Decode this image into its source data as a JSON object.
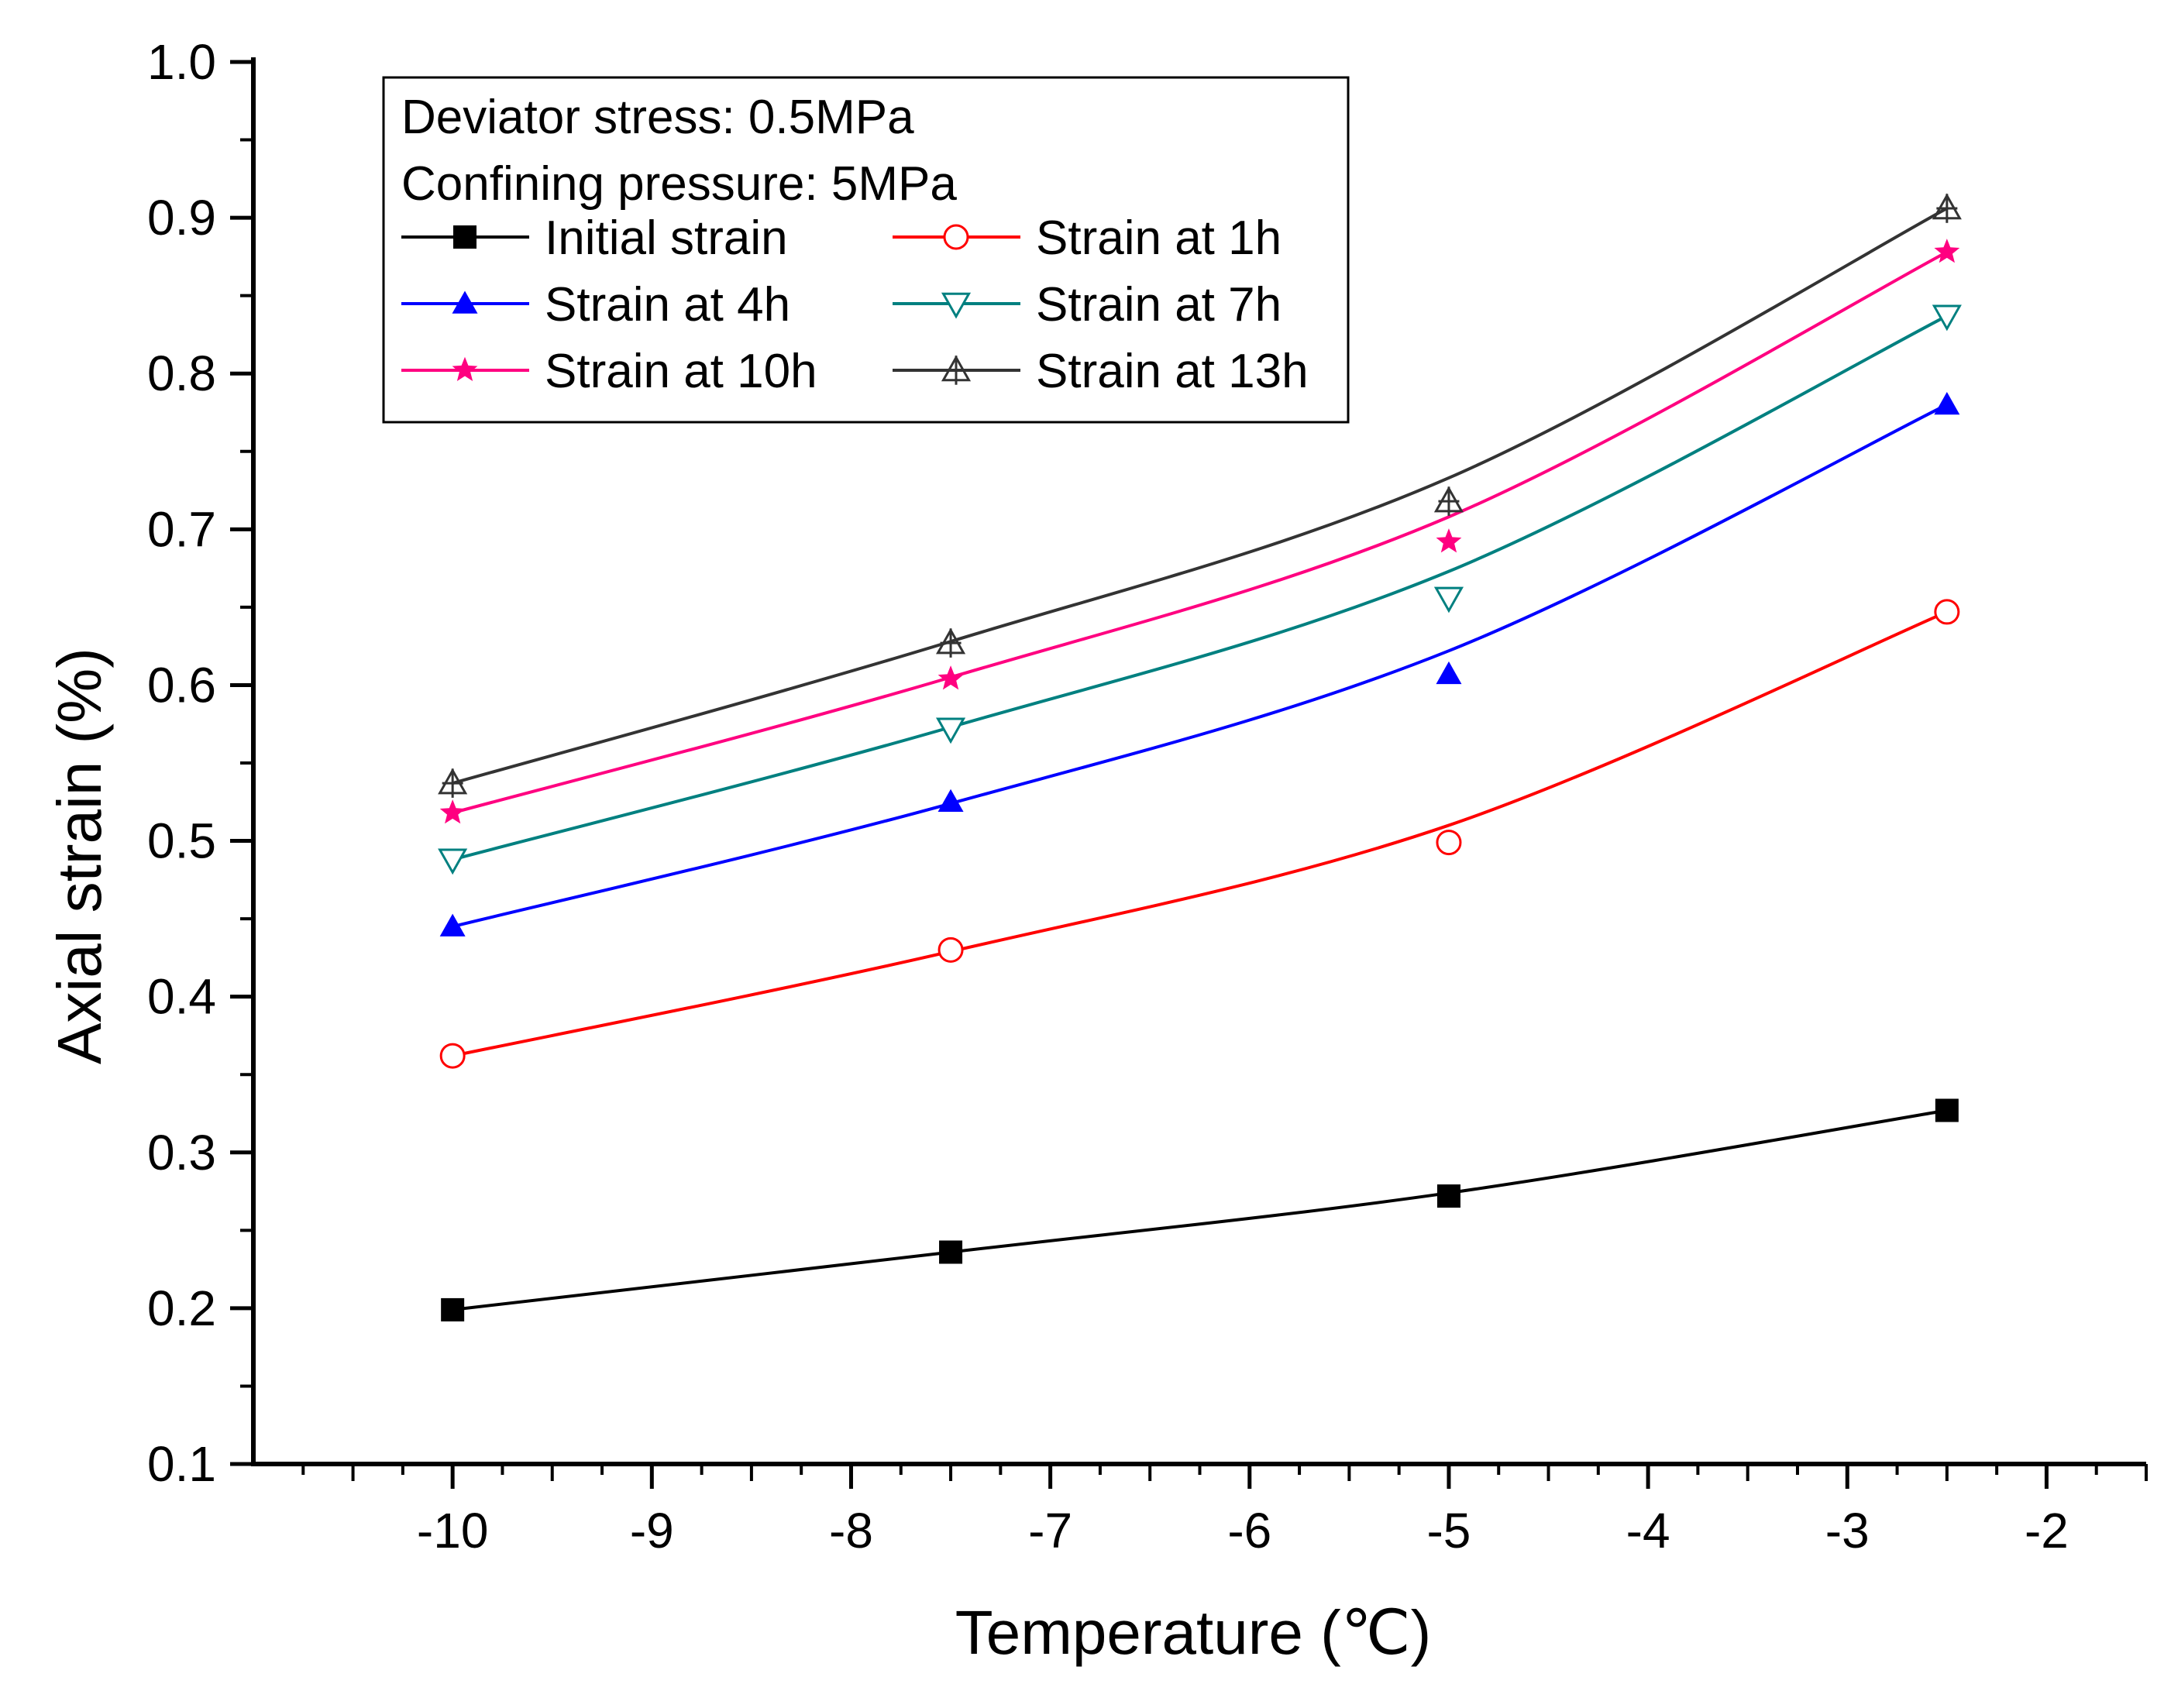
{
  "chart_data": {
    "type": "line",
    "xlabel": "Temperature (℃)",
    "ylabel": "Axial strain (%)",
    "xlim": [
      -11,
      -1.5
    ],
    "ylim": [
      0.1,
      1.0
    ],
    "x_ticks": [
      -10,
      -9,
      -8,
      -7,
      -6,
      -5,
      -4,
      -3,
      -2
    ],
    "x_tick_labels": [
      "-10",
      "-9",
      "-8",
      "-7",
      "-6",
      "-5",
      "-4",
      "-3",
      "-2"
    ],
    "y_ticks": [
      0.1,
      0.2,
      0.3,
      0.4,
      0.5,
      0.6,
      0.7,
      0.8,
      0.9,
      1.0
    ],
    "y_tick_labels": [
      "0.1",
      "0.2",
      "0.3",
      "0.4",
      "0.5",
      "0.6",
      "0.7",
      "0.8",
      "0.9",
      "1.0"
    ],
    "x": [
      -10,
      -7.5,
      -5,
      -2.5
    ],
    "legend_header": [
      "Deviator stress: 0.5MPa",
      "Confining pressure: 5MPa"
    ],
    "legend_position": "top-left",
    "series": [
      {
        "name": "Initial strain",
        "color": "#000000",
        "marker": "square-filled",
        "values": [
          0.199,
          0.236,
          0.272,
          0.327
        ],
        "fit": [
          0.199,
          0.236,
          0.274,
          0.327
        ]
      },
      {
        "name": "Strain at 1h",
        "color": "#ff0000",
        "marker": "circle-open",
        "values": [
          0.362,
          0.43,
          0.499,
          0.647
        ],
        "fit": [
          0.362,
          0.429,
          0.51,
          0.647
        ]
      },
      {
        "name": "Strain at 4h",
        "color": "#0000ff",
        "marker": "triangle-up-filled",
        "values": [
          0.445,
          0.525,
          0.607,
          0.78
        ],
        "fit": [
          0.445,
          0.524,
          0.622,
          0.78
        ]
      },
      {
        "name": "Strain at 7h",
        "color": "#008080",
        "marker": "triangle-down-open",
        "values": [
          0.488,
          0.572,
          0.656,
          0.837
        ],
        "fit": [
          0.488,
          0.573,
          0.673,
          0.837
        ]
      },
      {
        "name": "Strain at 10h",
        "color": "#ff0080",
        "marker": "star-filled",
        "values": [
          0.518,
          0.604,
          0.692,
          0.878
        ],
        "fit": [
          0.518,
          0.605,
          0.708,
          0.878
        ]
      },
      {
        "name": "Strain at 13h",
        "color": "#333333",
        "marker": "triangle-up-cross",
        "values": [
          0.537,
          0.627,
          0.718,
          0.906
        ],
        "fit": [
          0.537,
          0.628,
          0.733,
          0.906
        ]
      }
    ]
  }
}
